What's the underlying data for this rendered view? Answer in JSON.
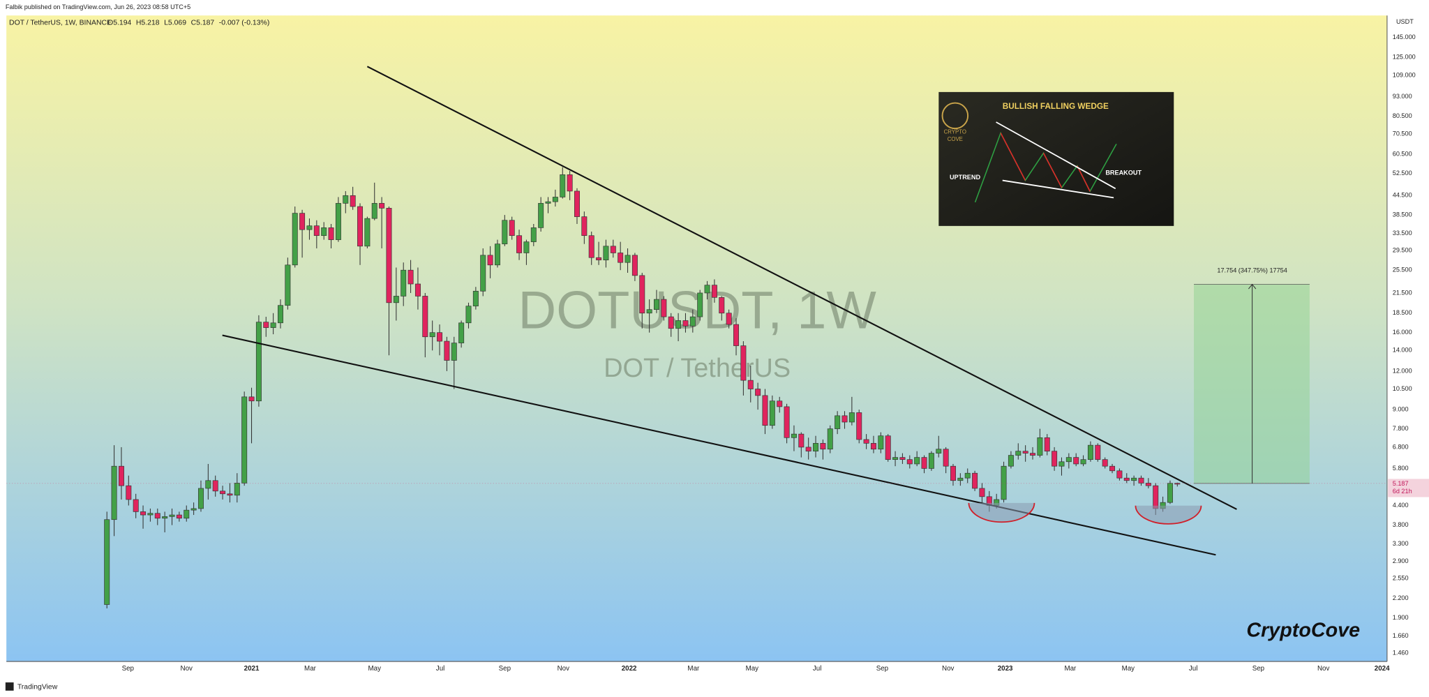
{
  "header": {
    "publisher": "Falbik published on TradingView.com, Jun 26, 2023 08:58 UTC+5",
    "footer": "TradingView"
  },
  "chart_data": {
    "type": "candlestick",
    "symbol": "DOT / TetherUS, 1W, BINANCE",
    "ohlc_labels": [
      "O5.194",
      "H5.218",
      "L5.069",
      "C5.187",
      "-0.007 (-0.13%)"
    ],
    "watermark_title": "DOTUSDT, 1W",
    "watermark_subtitle": "DOT / TetherUS",
    "y_axis_label": "USDT",
    "log_scale": true,
    "grid": false,
    "up_color": "#43a047",
    "down_color": "#e0245e",
    "last_price": {
      "value": 5.187,
      "label": "5.187"
    },
    "countdown": "6d 21h",
    "measure": {
      "start": 5.187,
      "end": 22.941,
      "label": "17.754 (347.75%) 17754"
    },
    "signature": "CryptoCove",
    "inset": {
      "title": "BULLISH FALLING WEDGE",
      "left": "UPTREND",
      "right": "BREAKOUT",
      "logo_top": "CRYPTO",
      "logo_bottom": "COVE"
    },
    "xlim": [
      -13.9,
      177
    ],
    "xticks": [
      {
        "value": 2.9,
        "label": "Sep"
      },
      {
        "value": 11,
        "label": "Nov"
      },
      {
        "value": 20,
        "label": "2021"
      },
      {
        "value": 28.1,
        "label": "Mar"
      },
      {
        "value": 37,
        "label": "May"
      },
      {
        "value": 46.1,
        "label": "Jul"
      },
      {
        "value": 55,
        "label": "Sep"
      },
      {
        "value": 63.1,
        "label": "Nov"
      },
      {
        "value": 72.2,
        "label": "2022"
      },
      {
        "value": 81.1,
        "label": "Mar"
      },
      {
        "value": 89.2,
        "label": "May"
      },
      {
        "value": 98.2,
        "label": "Jul"
      },
      {
        "value": 107.2,
        "label": "Sep"
      },
      {
        "value": 116.3,
        "label": "Nov"
      },
      {
        "value": 124.2,
        "label": "2023"
      },
      {
        "value": 133.2,
        "label": "Mar"
      },
      {
        "value": 141.2,
        "label": "May"
      },
      {
        "value": 150.2,
        "label": "Jul"
      },
      {
        "value": 159.2,
        "label": "Sep"
      },
      {
        "value": 168.2,
        "label": "Nov"
      },
      {
        "value": 176.3,
        "label": "2024"
      }
    ],
    "ylim": [
      1.373,
      170.7
    ],
    "yticks": [
      {
        "value": 145,
        "label": "145.000"
      },
      {
        "value": 125,
        "label": "125.000"
      },
      {
        "value": 109,
        "label": "109.000"
      },
      {
        "value": 93,
        "label": "93.000"
      },
      {
        "value": 80.5,
        "label": "80.500"
      },
      {
        "value": 70.5,
        "label": "70.500"
      },
      {
        "value": 60.5,
        "label": "60.500"
      },
      {
        "value": 52.5,
        "label": "52.500"
      },
      {
        "value": 44.5,
        "label": "44.500"
      },
      {
        "value": 38.5,
        "label": "38.500"
      },
      {
        "value": 33.5,
        "label": "33.500"
      },
      {
        "value": 29.5,
        "label": "29.500"
      },
      {
        "value": 25.5,
        "label": "25.500"
      },
      {
        "value": 21.5,
        "label": "21.500"
      },
      {
        "value": 18.5,
        "label": "18.500"
      },
      {
        "value": 16,
        "label": "16.000"
      },
      {
        "value": 14,
        "label": "14.000"
      },
      {
        "value": 12,
        "label": "12.000"
      },
      {
        "value": 10.5,
        "label": "10.500"
      },
      {
        "value": 9,
        "label": "9.000"
      },
      {
        "value": 7.8,
        "label": "7.800"
      },
      {
        "value": 6.8,
        "label": "6.800"
      },
      {
        "value": 5.8,
        "label": "5.800"
      },
      {
        "value": 4.4,
        "label": "4.400"
      },
      {
        "value": 3.8,
        "label": "3.800"
      },
      {
        "value": 3.3,
        "label": "3.300"
      },
      {
        "value": 2.9,
        "label": "2.900"
      },
      {
        "value": 2.55,
        "label": "2.550"
      },
      {
        "value": 2.2,
        "label": "2.200"
      },
      {
        "value": 1.9,
        "label": "1.900"
      },
      {
        "value": 1.66,
        "label": "1.660"
      },
      {
        "value": 1.46,
        "label": "1.460"
      }
    ],
    "candles": [
      [
        2.1,
        4.2,
        2.04,
        3.96
      ],
      [
        3.96,
        6.9,
        3.5,
        5.9
      ],
      [
        5.9,
        6.8,
        4.6,
        5.1
      ],
      [
        5.1,
        5.5,
        4.4,
        4.6
      ],
      [
        4.6,
        4.8,
        4.0,
        4.2
      ],
      [
        4.2,
        4.4,
        3.7,
        4.1
      ],
      [
        4.1,
        4.3,
        3.9,
        4.15
      ],
      [
        4.15,
        4.3,
        3.8,
        4.0
      ],
      [
        4.0,
        4.2,
        3.6,
        4.05
      ],
      [
        4.05,
        4.3,
        3.8,
        4.1
      ],
      [
        4.1,
        4.2,
        3.9,
        4.0
      ],
      [
        4.0,
        4.4,
        3.9,
        4.25
      ],
      [
        4.25,
        4.5,
        4.1,
        4.3
      ],
      [
        4.3,
        5.3,
        4.2,
        5.0
      ],
      [
        5.0,
        6.0,
        4.6,
        5.3
      ],
      [
        5.3,
        5.5,
        4.7,
        4.9
      ],
      [
        4.9,
        5.1,
        4.6,
        4.8
      ],
      [
        4.8,
        5.2,
        4.5,
        4.75
      ],
      [
        4.75,
        5.6,
        4.5,
        5.2
      ],
      [
        5.2,
        10.3,
        5.1,
        9.9
      ],
      [
        9.9,
        10.6,
        7.0,
        9.6
      ],
      [
        9.6,
        18.2,
        9.2,
        17.3
      ],
      [
        17.3,
        18.0,
        15.5,
        16.6
      ],
      [
        16.6,
        18.5,
        15.8,
        17.2
      ],
      [
        17.2,
        20.5,
        16.5,
        19.6
      ],
      [
        19.6,
        28.0,
        19.0,
        26.5
      ],
      [
        26.5,
        41.0,
        26.0,
        39.0
      ],
      [
        39.0,
        40.0,
        28.0,
        34.5
      ],
      [
        34.5,
        37.5,
        32.0,
        35.5
      ],
      [
        35.5,
        37.0,
        30.0,
        33.0
      ],
      [
        33.0,
        36.5,
        32.0,
        35.0
      ],
      [
        35.0,
        36.0,
        30.0,
        32.0
      ],
      [
        32.0,
        44.0,
        31.5,
        42.0
      ],
      [
        42.0,
        46.0,
        39.0,
        44.5
      ],
      [
        44.5,
        47.5,
        40.0,
        41.0
      ],
      [
        41.0,
        42.0,
        26.5,
        30.5
      ],
      [
        30.5,
        38.0,
        30.0,
        37.5
      ],
      [
        37.5,
        49.0,
        37.0,
        42.0
      ],
      [
        42.0,
        44.0,
        30.0,
        40.5
      ],
      [
        40.5,
        41.0,
        13.5,
        20.0
      ],
      [
        20.0,
        26.0,
        17.5,
        21.0
      ],
      [
        21.0,
        27.0,
        19.5,
        25.5
      ],
      [
        25.5,
        27.5,
        21.5,
        23.0
      ],
      [
        23.0,
        26.0,
        19.0,
        21.0
      ],
      [
        21.0,
        21.5,
        13.3,
        15.5
      ],
      [
        15.5,
        17.5,
        14.0,
        16.0
      ],
      [
        16.0,
        17.0,
        13.5,
        15.0
      ],
      [
        15.0,
        15.5,
        12.0,
        13.0
      ],
      [
        13.0,
        15.5,
        10.5,
        14.8
      ],
      [
        14.8,
        17.5,
        14.3,
        17.2
      ],
      [
        17.2,
        20.0,
        16.5,
        19.5
      ],
      [
        19.5,
        22.5,
        19.0,
        21.8
      ],
      [
        21.8,
        30.0,
        21.0,
        28.5
      ],
      [
        28.5,
        30.5,
        24.0,
        26.5
      ],
      [
        26.5,
        32.0,
        26.0,
        31.0
      ],
      [
        31.0,
        38.5,
        30.5,
        37.0
      ],
      [
        37.0,
        38.0,
        32.0,
        33.0
      ],
      [
        33.0,
        34.5,
        27.5,
        29.0
      ],
      [
        29.0,
        32.0,
        26.5,
        31.5
      ],
      [
        31.5,
        36.0,
        30.5,
        35.0
      ],
      [
        35.0,
        44.0,
        34.0,
        42.0
      ],
      [
        42.0,
        44.0,
        39.0,
        42.5
      ],
      [
        42.5,
        46.5,
        41.0,
        44.0
      ],
      [
        44.0,
        55.0,
        43.5,
        52.0
      ],
      [
        52.0,
        53.5,
        43.0,
        46.0
      ],
      [
        46.0,
        47.0,
        36.0,
        38.0
      ],
      [
        38.0,
        39.5,
        31.0,
        33.0
      ],
      [
        33.0,
        34.0,
        26.5,
        28.0
      ],
      [
        28.0,
        31.5,
        26.5,
        27.5
      ],
      [
        27.5,
        32.0,
        26.0,
        30.5
      ],
      [
        30.5,
        32.0,
        28.0,
        29.0
      ],
      [
        29.0,
        31.5,
        25.5,
        27.0
      ],
      [
        27.0,
        30.0,
        25.0,
        28.5
      ],
      [
        28.5,
        29.0,
        23.5,
        24.5
      ],
      [
        24.5,
        25.0,
        16.5,
        18.5
      ],
      [
        18.5,
        20.5,
        16.0,
        19.0
      ],
      [
        19.0,
        22.0,
        18.5,
        20.5
      ],
      [
        20.5,
        21.0,
        17.5,
        18.0
      ],
      [
        18.0,
        18.5,
        15.5,
        16.5
      ],
      [
        16.5,
        18.5,
        15.0,
        17.5
      ],
      [
        17.5,
        18.5,
        16.0,
        16.8
      ],
      [
        16.8,
        19.0,
        16.0,
        18.0
      ],
      [
        18.0,
        22.0,
        17.5,
        21.5
      ],
      [
        21.5,
        23.5,
        20.5,
        22.8
      ],
      [
        22.8,
        23.8,
        20.0,
        20.8
      ],
      [
        20.8,
        21.0,
        17.5,
        18.5
      ],
      [
        18.5,
        19.0,
        16.5,
        17.0
      ],
      [
        17.0,
        17.8,
        13.5,
        14.5
      ],
      [
        14.5,
        15.0,
        10.0,
        11.2
      ],
      [
        11.2,
        12.5,
        9.5,
        10.5
      ],
      [
        10.5,
        11.0,
        9.0,
        10.0
      ],
      [
        10.0,
        10.5,
        7.5,
        8.0
      ],
      [
        8.0,
        10.0,
        7.8,
        9.6
      ],
      [
        9.6,
        9.9,
        8.8,
        9.2
      ],
      [
        9.2,
        9.4,
        7.0,
        7.3
      ],
      [
        7.3,
        8.0,
        6.6,
        7.5
      ],
      [
        7.5,
        7.6,
        6.3,
        6.8
      ],
      [
        6.8,
        7.3,
        6.2,
        6.6
      ],
      [
        6.6,
        7.4,
        6.3,
        7.0
      ],
      [
        7.0,
        7.2,
        6.2,
        6.7
      ],
      [
        6.7,
        8.0,
        6.5,
        7.8
      ],
      [
        7.8,
        8.9,
        7.5,
        8.6
      ],
      [
        8.6,
        8.9,
        7.8,
        8.2
      ],
      [
        8.2,
        9.9,
        8.0,
        8.8
      ],
      [
        8.8,
        9.0,
        7.0,
        7.2
      ],
      [
        7.2,
        7.5,
        6.7,
        7.0
      ],
      [
        7.0,
        7.4,
        6.5,
        6.7
      ],
      [
        6.7,
        7.6,
        6.5,
        7.4
      ],
      [
        7.4,
        7.5,
        6.1,
        6.2
      ],
      [
        6.2,
        6.6,
        5.9,
        6.3
      ],
      [
        6.3,
        6.5,
        6.0,
        6.2
      ],
      [
        6.2,
        6.4,
        5.8,
        6.0
      ],
      [
        6.0,
        6.6,
        5.9,
        6.3
      ],
      [
        6.3,
        6.4,
        5.6,
        5.8
      ],
      [
        5.8,
        6.6,
        5.7,
        6.5
      ],
      [
        6.5,
        7.4,
        6.3,
        6.7
      ],
      [
        6.7,
        6.8,
        5.6,
        5.9
      ],
      [
        5.9,
        6.0,
        5.1,
        5.3
      ],
      [
        5.3,
        5.6,
        5.1,
        5.4
      ],
      [
        5.4,
        5.8,
        5.2,
        5.6
      ],
      [
        5.6,
        5.7,
        4.9,
        5.0
      ],
      [
        5.0,
        5.2,
        4.5,
        4.7
      ],
      [
        4.7,
        4.9,
        4.2,
        4.4
      ],
      [
        4.4,
        4.8,
        4.3,
        4.6
      ],
      [
        4.6,
        6.1,
        4.5,
        5.9
      ],
      [
        5.9,
        6.6,
        5.8,
        6.4
      ],
      [
        6.4,
        7.0,
        6.2,
        6.6
      ],
      [
        6.6,
        6.9,
        6.1,
        6.5
      ],
      [
        6.5,
        6.8,
        6.2,
        6.4
      ],
      [
        6.4,
        7.8,
        6.3,
        7.3
      ],
      [
        7.3,
        7.5,
        6.4,
        6.6
      ],
      [
        6.6,
        6.8,
        5.7,
        5.9
      ],
      [
        5.9,
        6.3,
        5.5,
        6.1
      ],
      [
        6.1,
        6.5,
        5.8,
        6.3
      ],
      [
        6.3,
        6.5,
        5.9,
        6.0
      ],
      [
        6.0,
        6.4,
        5.9,
        6.2
      ],
      [
        6.2,
        7.1,
        6.1,
        6.9
      ],
      [
        6.9,
        7.0,
        6.1,
        6.2
      ],
      [
        6.2,
        6.3,
        5.8,
        5.9
      ],
      [
        5.9,
        6.0,
        5.6,
        5.7
      ],
      [
        5.7,
        5.8,
        5.3,
        5.4
      ],
      [
        5.4,
        5.6,
        5.2,
        5.3
      ],
      [
        5.3,
        5.5,
        5.1,
        5.4
      ],
      [
        5.4,
        5.5,
        5.1,
        5.2
      ],
      [
        5.2,
        5.4,
        5.0,
        5.1
      ],
      [
        5.1,
        5.2,
        4.1,
        4.3
      ],
      [
        4.3,
        4.7,
        4.2,
        4.5
      ],
      [
        4.5,
        5.3,
        4.45,
        5.194
      ],
      [
        5.194,
        5.218,
        5.069,
        5.187
      ]
    ]
  }
}
